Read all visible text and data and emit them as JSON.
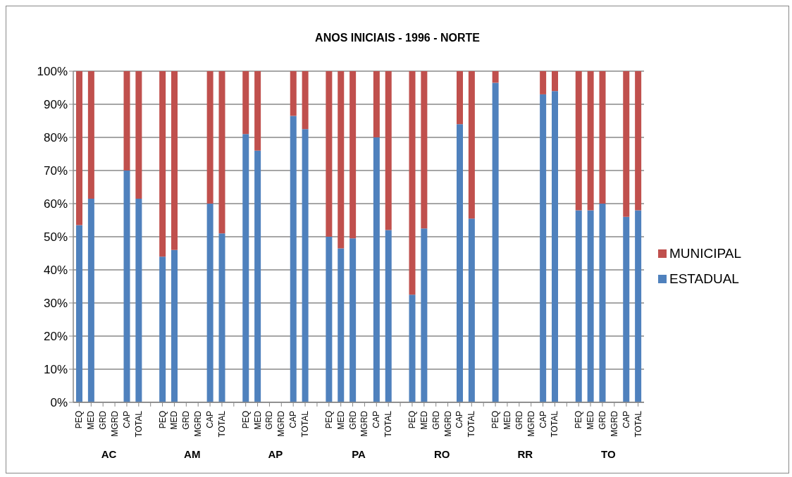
{
  "chart_data": {
    "type": "bar",
    "title": "ANOS INICIAIS - 1996 - NORTE",
    "stacked": true,
    "categories": [
      "PEQ",
      "MED",
      "GRD",
      "MGRD",
      "CAP",
      "TOTAL",
      null,
      "PEQ",
      "MED",
      "GRD",
      "MGRD",
      "CAP",
      "TOTAL",
      null,
      "PEQ",
      "MED",
      "GRD",
      "MGRD",
      "CAP",
      "TOTAL",
      null,
      "PEQ",
      "MED",
      "GRD",
      "MGRD",
      "CAP",
      "TOTAL",
      null,
      "PEQ",
      "MED",
      "GRD",
      "MGRD",
      "CAP",
      "TOTAL",
      null,
      "PEQ",
      "MED",
      "GRD",
      "MGRD",
      "CAP",
      "TOTAL",
      null,
      "PEQ",
      "MED",
      "GRD",
      "MGRD",
      "CAP",
      "TOTAL"
    ],
    "series": [
      {
        "name": "ESTADUAL",
        "color": "#4f81bd",
        "values": [
          53.5,
          61.5,
          null,
          null,
          70,
          61.5,
          null,
          44,
          46,
          null,
          null,
          60,
          51,
          null,
          81,
          76,
          null,
          null,
          86.5,
          82.5,
          null,
          50,
          46.5,
          49.5,
          null,
          80,
          52,
          null,
          32.5,
          52.5,
          null,
          null,
          84,
          55.5,
          null,
          96.5,
          null,
          null,
          null,
          93,
          94,
          null,
          58,
          58,
          60,
          null,
          56,
          58
        ]
      },
      {
        "name": "MUNICIPAL",
        "color": "#c0504d",
        "values": [
          46.5,
          38.5,
          null,
          null,
          30,
          38.5,
          null,
          56,
          54,
          null,
          null,
          40,
          49,
          null,
          19,
          24,
          null,
          null,
          13.5,
          17.5,
          null,
          50,
          53.5,
          50.5,
          null,
          20,
          48,
          null,
          67.5,
          47.5,
          null,
          null,
          16,
          44.5,
          null,
          3.5,
          null,
          null,
          null,
          7,
          6,
          null,
          42,
          42,
          40,
          null,
          44,
          42
        ]
      }
    ],
    "ylim": [
      0,
      100
    ],
    "yticks": [
      {
        "value": 0,
        "label": "0%"
      },
      {
        "value": 10,
        "label": "10%"
      },
      {
        "value": 20,
        "label": "20%"
      },
      {
        "value": 30,
        "label": "30%"
      },
      {
        "value": 40,
        "label": "40%"
      },
      {
        "value": 50,
        "label": "50%"
      },
      {
        "value": 60,
        "label": "60%"
      },
      {
        "value": 70,
        "label": "70%"
      },
      {
        "value": 80,
        "label": "80%"
      },
      {
        "value": 90,
        "label": "90%"
      },
      {
        "value": 100,
        "label": "100%"
      }
    ],
    "grid": "y",
    "legend": "right",
    "annotations": [
      "AC",
      "AM",
      "AP",
      "PA",
      "RO",
      "RR",
      "TO"
    ]
  }
}
